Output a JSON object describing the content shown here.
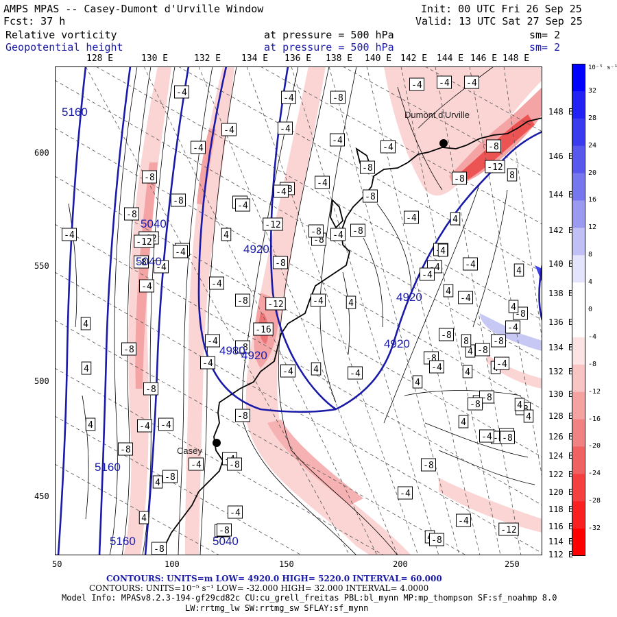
{
  "header": {
    "title": "AMPS MPAS -- Casey-Dumont d'Urville Window",
    "forecast": "Fcst:    37 h",
    "init": "Init: 00 UTC Fri 26 Sep 25",
    "valid": "Valid: 13 UTC Sat 27 Sep 25"
  },
  "fields": [
    {
      "name": "Relative vorticity",
      "level": "at pressure =  500 hPa",
      "smoothing": "sm= 2",
      "color": "#000000"
    },
    {
      "name": "Geopotential height",
      "level": "at pressure =  500 hPa",
      "smoothing": "sm= 2",
      "color": "#1a1aa8"
    }
  ],
  "longitude_labels": [
    "128 E",
    "130 E",
    "132 E",
    "134 E",
    "136 E",
    "138 E",
    "140 E",
    "142 E",
    "144 E",
    "146 E",
    "148 E"
  ],
  "right_lat_labels": [
    "148 E",
    "146 E",
    "144 E",
    "142 E",
    "140 E",
    "138 E",
    "136 E",
    "134 E",
    "132 E",
    "130 E",
    "128 E",
    "126 E",
    "124 E",
    "122 E",
    "120 E",
    "118 E",
    "116 E",
    "114 E",
    "112 E"
  ],
  "x_axis_ticks": [
    "50",
    "100",
    "150",
    "200",
    "250"
  ],
  "y_axis_ticks": [
    "600",
    "550",
    "500",
    "450"
  ],
  "colorbar": {
    "unit_label": "10⁻⁵ s⁻¹",
    "labels": [
      "32",
      "28",
      "24",
      "20",
      "16",
      "12",
      "8",
      "4",
      "0",
      "-4",
      "-8",
      "-12",
      "-16",
      "-20",
      "-24",
      "-28",
      "-32"
    ],
    "colors": [
      "#0000ff",
      "#2222f4",
      "#3a3aee",
      "#5858ee",
      "#7676ee",
      "#9a9af0",
      "#c0c0f6",
      "#e4e4fc",
      "#ffffff",
      "#ffffff",
      "#fde4e4",
      "#f8c4c4",
      "#f4a2a2",
      "#f08282",
      "#f06262",
      "#f44040",
      "#f82020",
      "#ff0000"
    ]
  },
  "height_contour_labels": [
    "5160",
    "5040",
    "5040",
    "4920",
    "4920",
    "4920",
    "4920",
    "4980",
    "5160",
    "5160",
    "5040"
  ],
  "vorticity_box_labels": [
    "-4",
    "-4",
    "-4",
    "-4",
    "-4",
    "-8",
    "-4",
    "-4",
    "-4",
    "-4",
    "-8",
    "-4",
    "-4",
    "-8",
    "-8",
    "-8",
    "-4",
    "-8",
    "-8",
    "-4",
    "4",
    "-4",
    "-12",
    "-4",
    "-4",
    "-8",
    "-4",
    "-12",
    "-8",
    "-8",
    "-8",
    "-4",
    "-4",
    "-12",
    "-8",
    "-4",
    "-4",
    "-8",
    "-12",
    "-16",
    "-4",
    "4",
    "4",
    "-8",
    "4",
    "-8",
    "-4",
    "-4",
    "-8",
    "-4",
    "-4",
    "-4",
    "-4",
    "-8",
    "-4",
    "-8",
    "-8",
    "4",
    "-4",
    "4",
    "-8",
    "4",
    "4",
    "-8",
    "-4",
    "4",
    "-4",
    "-8",
    "4",
    "-8",
    "4",
    "-4",
    "4",
    "-4",
    "-8",
    "-12",
    "-12",
    "-8",
    "-8",
    "4",
    "-4",
    "-4",
    "4",
    "-4",
    "-4",
    "-8",
    "4",
    "4",
    "-4",
    "-8",
    "8",
    "-4",
    "-4",
    "8",
    "4",
    "-8",
    "-4",
    "-8",
    "-8",
    "4",
    "-8",
    "4",
    "-8",
    "4",
    "-4",
    "-8",
    "4",
    "-8",
    "-8",
    "4",
    "-8",
    "-4",
    "-4"
  ],
  "stations": [
    "Dumont d'Urville",
    "Casey"
  ],
  "footer": {
    "contours1": "CONTOURS:  UNITS=m  LOW=  4920.0        HIGH=  5220.0       INTERVAL=   60.000",
    "contours2": "CONTOURS:  UNITS=10⁻⁵ s⁻¹  LOW= -32.000        HIGH=  32.000        INTERVAL=   4.0000",
    "model_info": "Model Info: MPASv8.2.3-194-gf29cd82c CU:cu_grell_freitas PBL:bl_mynn MP:mp_thompson SF:sf_noahmp 8.0",
    "physics": "LW:rrtmg_lw SW:rrtmg_sw SFLAY:sf_mynn"
  }
}
